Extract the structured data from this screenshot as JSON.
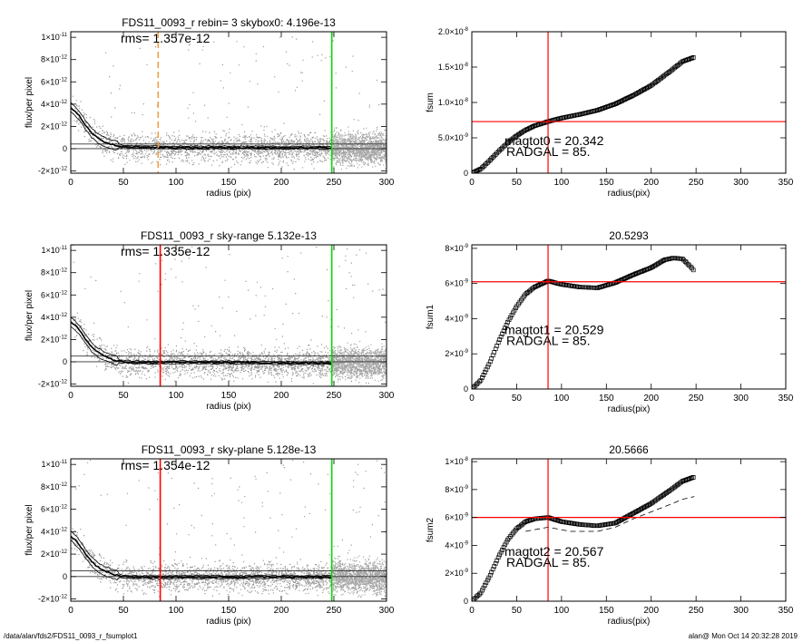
{
  "footer": {
    "path": "/data/alan/fds2/FDS11_0093_r_fsumplot1",
    "stamp": "alan@  Mon Oct 14 20:32:28 2019"
  },
  "colors": {
    "red": "#ff0000",
    "green": "#00dd00",
    "orange": "#f0a040",
    "scatter": "#9a9a9a"
  },
  "chart_data": [
    {
      "id": "profile-1",
      "type": "scatter",
      "title": "FDS11_0093_r rebin= 3    skybox0:  4.196e-13",
      "annotation": "rms= 1.357e-12",
      "xlabel": "radius (pix)",
      "ylabel": "flux/per pixel",
      "xlim": [
        0,
        300
      ],
      "ylim": [
        -2.2e-12,
        1.05e-11
      ],
      "xticks": [
        {
          "v": 0,
          "label": "0"
        },
        {
          "v": 50,
          "label": "50"
        },
        {
          "v": 100,
          "label": "100"
        },
        {
          "v": 150,
          "label": "150"
        },
        {
          "v": 200,
          "label": "200"
        },
        {
          "v": 250,
          "label": "250"
        },
        {
          "v": 300,
          "label": "300"
        }
      ],
      "yticks": [
        {
          "v": -2e-12,
          "m": "-2",
          "e": "-12"
        },
        {
          "v": 0,
          "m": "0",
          "e": ""
        },
        {
          "v": 2e-12,
          "m": "2",
          "e": "-12"
        },
        {
          "v": 4e-12,
          "m": "4",
          "e": "-12"
        },
        {
          "v": 6e-12,
          "m": "6",
          "e": "-12"
        },
        {
          "v": 8e-12,
          "m": "8",
          "e": "-12"
        },
        {
          "v": 1e-11,
          "m": "1",
          "e": "-11"
        }
      ],
      "vlines": [
        {
          "x": 83,
          "color": "orange",
          "dashed": true
        },
        {
          "x": 248,
          "color": "green",
          "dashed": false
        }
      ],
      "hlines": [
        0,
        4.196e-13
      ],
      "profile": [
        [
          0,
          3.7e-12
        ],
        [
          5,
          3.3e-12
        ],
        [
          10,
          2.7e-12
        ],
        [
          15,
          2e-12
        ],
        [
          20,
          1.4e-12
        ],
        [
          25,
          1e-12
        ],
        [
          30,
          7e-13
        ],
        [
          35,
          5e-13
        ],
        [
          40,
          3.5e-13
        ],
        [
          45,
          2.5e-13
        ],
        [
          50,
          2e-13
        ],
        [
          60,
          1.5e-13
        ],
        [
          80,
          1.2e-13
        ],
        [
          100,
          1e-13
        ],
        [
          150,
          1e-13
        ],
        [
          200,
          1e-13
        ],
        [
          248,
          1e-13
        ]
      ]
    },
    {
      "id": "growth-1",
      "type": "scatter",
      "title": "",
      "annotations": [
        "magtot0 =  20.342",
        "RADGAL =     85."
      ],
      "xlabel": "radius(pix)",
      "ylabel": "fsum",
      "xlim": [
        0,
        350
      ],
      "ylim": [
        0,
        2e-08
      ],
      "xticks": [
        {
          "v": 0,
          "label": "0"
        },
        {
          "v": 50,
          "label": "50"
        },
        {
          "v": 100,
          "label": "100"
        },
        {
          "v": 150,
          "label": "150"
        },
        {
          "v": 200,
          "label": "200"
        },
        {
          "v": 250,
          "label": "250"
        },
        {
          "v": 300,
          "label": "300"
        },
        {
          "v": 350,
          "label": "350"
        }
      ],
      "yticks": [
        {
          "v": 0,
          "m": "0",
          "e": ""
        },
        {
          "v": 5e-09,
          "m": "5.0",
          "e": "-9"
        },
        {
          "v": 1e-08,
          "m": "1.0",
          "e": "-8"
        },
        {
          "v": 1.5e-08,
          "m": "1.5",
          "e": "-8"
        },
        {
          "v": 2e-08,
          "m": "2.0",
          "e": "-8"
        }
      ],
      "vline": 85,
      "hline": 7.3e-09,
      "curve": [
        [
          0,
          0
        ],
        [
          10,
          6e-10
        ],
        [
          20,
          1.8e-09
        ],
        [
          30,
          3.1e-09
        ],
        [
          40,
          4.3e-09
        ],
        [
          50,
          5.3e-09
        ],
        [
          60,
          6.1e-09
        ],
        [
          70,
          6.7e-09
        ],
        [
          85,
          7.3e-09
        ],
        [
          100,
          7.8e-09
        ],
        [
          120,
          8.3e-09
        ],
        [
          140,
          8.9e-09
        ],
        [
          160,
          9.8e-09
        ],
        [
          180,
          1.1e-08
        ],
        [
          200,
          1.24e-08
        ],
        [
          220,
          1.43e-08
        ],
        [
          235,
          1.58e-08
        ],
        [
          248,
          1.64e-08
        ]
      ]
    },
    {
      "id": "profile-2",
      "type": "scatter",
      "title": "FDS11_0093_r sky-range  5.132e-13",
      "annotation": "rms= 1.335e-12",
      "xlabel": "radius (pix)",
      "ylabel": "flux/per pixel",
      "xlim": [
        0,
        300
      ],
      "ylim": [
        -2.2e-12,
        1.05e-11
      ],
      "xticks": [
        {
          "v": 0,
          "label": "0"
        },
        {
          "v": 50,
          "label": "50"
        },
        {
          "v": 100,
          "label": "100"
        },
        {
          "v": 150,
          "label": "150"
        },
        {
          "v": 200,
          "label": "200"
        },
        {
          "v": 250,
          "label": "250"
        },
        {
          "v": 300,
          "label": "300"
        }
      ],
      "yticks": [
        {
          "v": -2e-12,
          "m": "-2",
          "e": "-12"
        },
        {
          "v": 0,
          "m": "0",
          "e": ""
        },
        {
          "v": 2e-12,
          "m": "2",
          "e": "-12"
        },
        {
          "v": 4e-12,
          "m": "4",
          "e": "-12"
        },
        {
          "v": 6e-12,
          "m": "6",
          "e": "-12"
        },
        {
          "v": 8e-12,
          "m": "8",
          "e": "-12"
        },
        {
          "v": 1e-11,
          "m": "1",
          "e": "-11"
        }
      ],
      "vlines": [
        {
          "x": 85,
          "color": "red",
          "dashed": false
        },
        {
          "x": 248,
          "color": "green",
          "dashed": false
        }
      ],
      "hlines": [
        0,
        5.132e-13
      ],
      "profile": [
        [
          0,
          3.6e-12
        ],
        [
          5,
          3.2e-12
        ],
        [
          10,
          2.6e-12
        ],
        [
          15,
          1.9e-12
        ],
        [
          20,
          1.3e-12
        ],
        [
          25,
          9e-13
        ],
        [
          30,
          6e-13
        ],
        [
          35,
          4e-13
        ],
        [
          40,
          2e-13
        ],
        [
          45,
          1e-13
        ],
        [
          50,
          0
        ],
        [
          60,
          -5e-14
        ],
        [
          80,
          -8e-14
        ],
        [
          100,
          -5e-14
        ],
        [
          150,
          -6e-14
        ],
        [
          200,
          -1e-13
        ],
        [
          248,
          -1.2e-13
        ]
      ]
    },
    {
      "id": "growth-2",
      "type": "scatter",
      "title": "20.5293",
      "annotations": [
        "magtot1 =  20.529",
        "RADGAL =     85."
      ],
      "xlabel": "radius(pix)",
      "ylabel": "fsum1",
      "xlim": [
        0,
        350
      ],
      "ylim": [
        0,
        8.2e-09
      ],
      "xticks": [
        {
          "v": 0,
          "label": "0"
        },
        {
          "v": 50,
          "label": "50"
        },
        {
          "v": 100,
          "label": "100"
        },
        {
          "v": 150,
          "label": "150"
        },
        {
          "v": 200,
          "label": "200"
        },
        {
          "v": 250,
          "label": "250"
        },
        {
          "v": 300,
          "label": "300"
        },
        {
          "v": 350,
          "label": "350"
        }
      ],
      "yticks": [
        {
          "v": 0,
          "m": "0",
          "e": ""
        },
        {
          "v": 2e-09,
          "m": "2",
          "e": "-9"
        },
        {
          "v": 4e-09,
          "m": "4",
          "e": "-9"
        },
        {
          "v": 6e-09,
          "m": "6",
          "e": "-9"
        },
        {
          "v": 8e-09,
          "m": "8",
          "e": "-9"
        }
      ],
      "vline": 85,
      "hline": 6.1e-09,
      "curve": [
        [
          0,
          0
        ],
        [
          10,
          5e-10
        ],
        [
          20,
          1.5e-09
        ],
        [
          30,
          2.7e-09
        ],
        [
          40,
          3.8e-09
        ],
        [
          50,
          4.7e-09
        ],
        [
          60,
          5.4e-09
        ],
        [
          70,
          5.8e-09
        ],
        [
          85,
          6.15e-09
        ],
        [
          100,
          5.95e-09
        ],
        [
          120,
          5.8e-09
        ],
        [
          140,
          5.75e-09
        ],
        [
          160,
          6.05e-09
        ],
        [
          180,
          6.5e-09
        ],
        [
          200,
          6.9e-09
        ],
        [
          215,
          7.35e-09
        ],
        [
          225,
          7.45e-09
        ],
        [
          235,
          7.4e-09
        ],
        [
          245,
          6.9e-09
        ],
        [
          248,
          6.7e-09
        ]
      ]
    },
    {
      "id": "profile-3",
      "type": "scatter",
      "title": "FDS11_0093_r sky-plane  5.128e-13",
      "annotation": "rms= 1.354e-12",
      "xlabel": "radius (pix)",
      "ylabel": "flux/per pixel",
      "xlim": [
        0,
        300
      ],
      "ylim": [
        -2.2e-12,
        1.05e-11
      ],
      "xticks": [
        {
          "v": 0,
          "label": "0"
        },
        {
          "v": 50,
          "label": "50"
        },
        {
          "v": 100,
          "label": "100"
        },
        {
          "v": 150,
          "label": "150"
        },
        {
          "v": 200,
          "label": "200"
        },
        {
          "v": 250,
          "label": "250"
        },
        {
          "v": 300,
          "label": "300"
        }
      ],
      "yticks": [
        {
          "v": -2e-12,
          "m": "-2",
          "e": "-12"
        },
        {
          "v": 0,
          "m": "0",
          "e": ""
        },
        {
          "v": 2e-12,
          "m": "2",
          "e": "-12"
        },
        {
          "v": 4e-12,
          "m": "4",
          "e": "-12"
        },
        {
          "v": 6e-12,
          "m": "6",
          "e": "-12"
        },
        {
          "v": 8e-12,
          "m": "8",
          "e": "-12"
        },
        {
          "v": 1e-11,
          "m": "1",
          "e": "-11"
        }
      ],
      "vlines": [
        {
          "x": 85,
          "color": "red",
          "dashed": false
        },
        {
          "x": 248,
          "color": "green",
          "dashed": false
        }
      ],
      "hlines": [
        0,
        5.128e-13
      ],
      "profile": [
        [
          0,
          3.6e-12
        ],
        [
          5,
          3.2e-12
        ],
        [
          10,
          2.6e-12
        ],
        [
          15,
          1.9e-12
        ],
        [
          20,
          1.3e-12
        ],
        [
          25,
          9e-13
        ],
        [
          30,
          6e-13
        ],
        [
          35,
          4e-13
        ],
        [
          40,
          2e-13
        ],
        [
          45,
          1e-13
        ],
        [
          50,
          0
        ],
        [
          60,
          -5e-14
        ],
        [
          80,
          -8e-14
        ],
        [
          100,
          -5e-14
        ],
        [
          150,
          -5e-14
        ],
        [
          200,
          -4e-14
        ],
        [
          248,
          -3e-14
        ]
      ]
    },
    {
      "id": "growth-3",
      "type": "scatter",
      "title": "20.5666",
      "annotations": [
        "magtot2 =  20.567",
        "RADGAL =     85."
      ],
      "xlabel": "radius(pix)",
      "ylabel": "fsum2",
      "xlim": [
        0,
        350
      ],
      "ylim": [
        0,
        1.02e-08
      ],
      "xticks": [
        {
          "v": 0,
          "label": "0"
        },
        {
          "v": 50,
          "label": "50"
        },
        {
          "v": 100,
          "label": "100"
        },
        {
          "v": 150,
          "label": "150"
        },
        {
          "v": 200,
          "label": "200"
        },
        {
          "v": 250,
          "label": "250"
        },
        {
          "v": 300,
          "label": "300"
        },
        {
          "v": 350,
          "label": "350"
        }
      ],
      "yticks": [
        {
          "v": 0,
          "m": "0",
          "e": ""
        },
        {
          "v": 2e-09,
          "m": "2",
          "e": "-9"
        },
        {
          "v": 4e-09,
          "m": "4",
          "e": "-9"
        },
        {
          "v": 6e-09,
          "m": "6",
          "e": "-9"
        },
        {
          "v": 8e-09,
          "m": "8",
          "e": "-9"
        },
        {
          "v": 1e-08,
          "m": "1",
          "e": "-8"
        }
      ],
      "vline": 85,
      "hline": 6e-09,
      "curve": [
        [
          0,
          0
        ],
        [
          10,
          6e-10
        ],
        [
          20,
          1.8e-09
        ],
        [
          30,
          3.2e-09
        ],
        [
          40,
          4.4e-09
        ],
        [
          50,
          5.2e-09
        ],
        [
          60,
          5.7e-09
        ],
        [
          70,
          5.9e-09
        ],
        [
          85,
          6e-09
        ],
        [
          100,
          5.7e-09
        ],
        [
          120,
          5.5e-09
        ],
        [
          140,
          5.4e-09
        ],
        [
          160,
          5.6e-09
        ],
        [
          180,
          6.3e-09
        ],
        [
          200,
          7e-09
        ],
        [
          220,
          7.9e-09
        ],
        [
          235,
          8.6e-09
        ],
        [
          248,
          8.9e-09
        ]
      ],
      "dashed_curve": [
        [
          60,
          5e-09
        ],
        [
          85,
          5.3e-09
        ],
        [
          110,
          5e-09
        ],
        [
          140,
          5e-09
        ],
        [
          160,
          5.3e-09
        ],
        [
          180,
          5.9e-09
        ],
        [
          200,
          6.4e-09
        ],
        [
          220,
          6.9e-09
        ],
        [
          235,
          7.3e-09
        ],
        [
          248,
          7.5e-09
        ]
      ]
    }
  ]
}
